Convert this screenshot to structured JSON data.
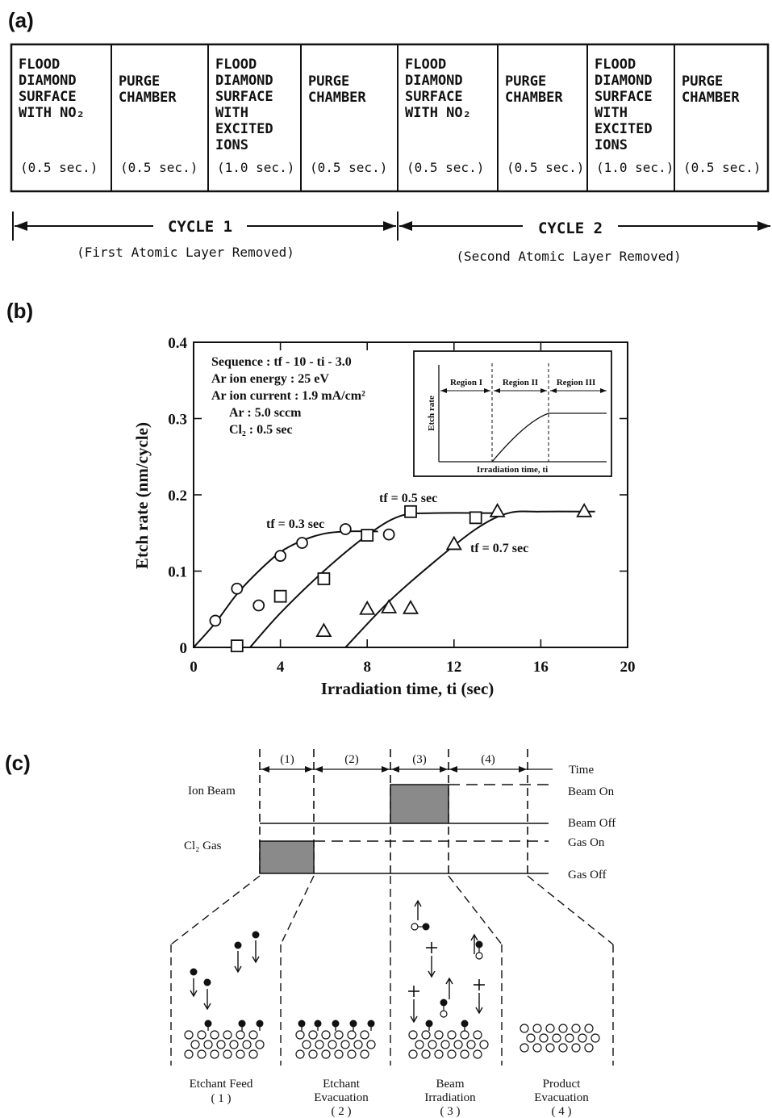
{
  "panel_a": {
    "label": "(a)",
    "steps": [
      {
        "lines": [
          "FLOOD",
          "DIAMOND",
          "SURFACE",
          "WITH NO₂"
        ],
        "duration": "(0.5 sec.)"
      },
      {
        "lines": [
          "PURGE",
          "CHAMBER"
        ],
        "duration": "(0.5 sec.)"
      },
      {
        "lines": [
          "FLOOD",
          "DIAMOND",
          "SURFACE",
          "WITH",
          "EXCITED",
          "IONS"
        ],
        "duration": "(1.0 sec.)"
      },
      {
        "lines": [
          "PURGE",
          "CHAMBER"
        ],
        "duration": "(0.5 sec.)"
      },
      {
        "lines": [
          "FLOOD",
          "DIAMOND",
          "SURFACE",
          "WITH NO₂"
        ],
        "duration": "(0.5 sec.)"
      },
      {
        "lines": [
          "PURGE",
          "CHAMBER"
        ],
        "duration": "(0.5 sec.)"
      },
      {
        "lines": [
          "FLOOD",
          "DIAMOND",
          "SURFACE",
          "WITH",
          "EXCITED",
          "IONS"
        ],
        "duration": "(1.0 sec.)"
      },
      {
        "lines": [
          "PURGE",
          "CHAMBER"
        ],
        "duration": "(0.5 sec.)"
      }
    ],
    "cycles": [
      {
        "label": "CYCLE 1",
        "note": "(First Atomic Layer Removed)"
      },
      {
        "label": "CYCLE 2",
        "note": "(Second Atomic Layer Removed)"
      }
    ]
  },
  "panel_b": {
    "label": "(b)",
    "chart_data": {
      "type": "scatter",
      "xlabel": "Irradiation time, ti (sec)",
      "ylabel": "Etch rate (nm/cycle)",
      "xlim": [
        0,
        20
      ],
      "ylim": [
        0,
        0.4
      ],
      "xticks": [
        "0",
        "4",
        "8",
        "12",
        "16",
        "20"
      ],
      "yticks": [
        "0",
        "0.1",
        "0.2",
        "0.3",
        "0.4"
      ],
      "grid": false,
      "conditions": [
        "Sequence : tf - 10 - ti - 3.0",
        "Ar ion energy : 25 eV",
        "Ar ion current : 1.9 mA/cm²",
        "Ar : 5.0 sccm",
        "Cl₂ : 0.5 sec"
      ],
      "series": [
        {
          "name": "tf = 0.3 sec",
          "marker": "circle",
          "points": [
            [
              1,
              0.035
            ],
            [
              2,
              0.077
            ],
            [
              3,
              0.055
            ],
            [
              4,
              0.12
            ],
            [
              5,
              0.137
            ],
            [
              7,
              0.155
            ],
            [
              9,
              0.148
            ]
          ],
          "curve": [
            [
              0,
              0
            ],
            [
              1,
              0.032
            ],
            [
              2,
              0.07
            ],
            [
              3,
              0.1
            ],
            [
              4,
              0.125
            ],
            [
              5,
              0.14
            ],
            [
              6,
              0.149
            ],
            [
              7,
              0.152
            ],
            [
              8.5,
              0.152
            ]
          ]
        },
        {
          "name": "tf = 0.5 sec",
          "marker": "square",
          "points": [
            [
              2,
              0.002
            ],
            [
              4,
              0.067
            ],
            [
              6,
              0.09
            ],
            [
              8,
              0.147
            ],
            [
              10,
              0.178
            ],
            [
              13,
              0.17
            ]
          ],
          "curve": [
            [
              2.6,
              0
            ],
            [
              4,
              0.045
            ],
            [
              6,
              0.1
            ],
            [
              8,
              0.147
            ],
            [
              9.5,
              0.172
            ],
            [
              11,
              0.176
            ],
            [
              14,
              0.176
            ]
          ]
        },
        {
          "name": "tf = 0.7 sec",
          "marker": "triangle",
          "points": [
            [
              6,
              0.021
            ],
            [
              8,
              0.05
            ],
            [
              9,
              0.052
            ],
            [
              10,
              0.051
            ],
            [
              12,
              0.135
            ],
            [
              14,
              0.178
            ],
            [
              18,
              0.178
            ]
          ],
          "curve": [
            [
              7,
              0
            ],
            [
              9,
              0.06
            ],
            [
              11,
              0.11
            ],
            [
              13,
              0.155
            ],
            [
              14.5,
              0.176
            ],
            [
              16,
              0.178
            ],
            [
              18.5,
              0.178
            ]
          ]
        }
      ],
      "inset": {
        "xlabel": "Irradiation time, ti",
        "ylabel": "Etch rate",
        "regions": [
          "Region I",
          "Region II",
          "Region III"
        ]
      }
    }
  },
  "panel_c": {
    "label": "(c)",
    "phases": [
      "(1)",
      "(2)",
      "(3)",
      "(4)"
    ],
    "time_label": "Time",
    "ion_beam_label": "Ion Beam",
    "gas_label": "Cl₂ Gas",
    "beam_on": "Beam On",
    "beam_off": "Beam Off",
    "gas_on": "Gas On",
    "gas_off": "Gas Off",
    "steps": [
      {
        "line1": "Etchant Feed",
        "line2": "",
        "num": "( 1 )"
      },
      {
        "line1": "Etchant",
        "line2": "Evacuation",
        "num": "( 2 )"
      },
      {
        "line1": "Beam",
        "line2": "Irradiation",
        "num": "( 3 )"
      },
      {
        "line1": "Product",
        "line2": "Evacuation",
        "num": "( 4 )"
      }
    ]
  }
}
